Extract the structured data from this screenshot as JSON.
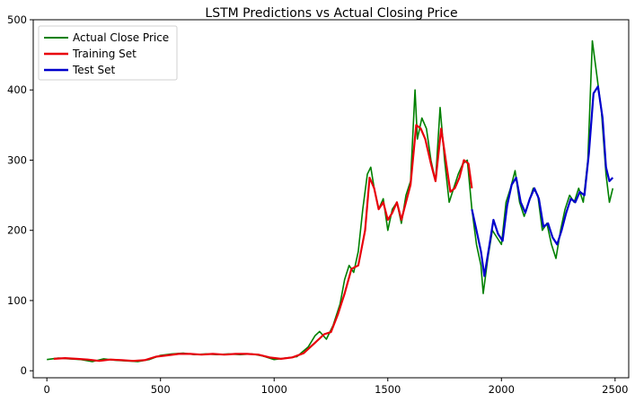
{
  "chart_data": {
    "type": "line",
    "title": "LSTM Predictions vs Actual Closing Price",
    "xlabel": "",
    "ylabel": "",
    "xlim": [
      -60,
      2560
    ],
    "ylim": [
      -10,
      500
    ],
    "x_ticks": [
      0,
      500,
      1000,
      1500,
      2000,
      2500
    ],
    "y_ticks": [
      0,
      100,
      200,
      300,
      400,
      500
    ],
    "grid": false,
    "legend_position": "top-left",
    "series": [
      {
        "name": "Actual Close Price",
        "color": "#008000",
        "points": [
          [
            0,
            16
          ],
          [
            50,
            18
          ],
          [
            100,
            17
          ],
          [
            150,
            16
          ],
          [
            200,
            13
          ],
          [
            250,
            17
          ],
          [
            300,
            15
          ],
          [
            350,
            14
          ],
          [
            400,
            13
          ],
          [
            450,
            16
          ],
          [
            500,
            22
          ],
          [
            550,
            24
          ],
          [
            600,
            25
          ],
          [
            650,
            23
          ],
          [
            700,
            24
          ],
          [
            750,
            23
          ],
          [
            800,
            24
          ],
          [
            850,
            23
          ],
          [
            900,
            24
          ],
          [
            950,
            21
          ],
          [
            1000,
            16
          ],
          [
            1050,
            18
          ],
          [
            1100,
            20
          ],
          [
            1150,
            34
          ],
          [
            1180,
            50
          ],
          [
            1200,
            56
          ],
          [
            1230,
            45
          ],
          [
            1260,
            65
          ],
          [
            1290,
            95
          ],
          [
            1310,
            130
          ],
          [
            1330,
            150
          ],
          [
            1350,
            140
          ],
          [
            1370,
            170
          ],
          [
            1390,
            230
          ],
          [
            1410,
            280
          ],
          [
            1425,
            290
          ],
          [
            1440,
            260
          ],
          [
            1460,
            230
          ],
          [
            1480,
            245
          ],
          [
            1500,
            200
          ],
          [
            1520,
            230
          ],
          [
            1540,
            240
          ],
          [
            1560,
            210
          ],
          [
            1580,
            250
          ],
          [
            1600,
            270
          ],
          [
            1620,
            400
          ],
          [
            1630,
            330
          ],
          [
            1650,
            360
          ],
          [
            1670,
            345
          ],
          [
            1690,
            300
          ],
          [
            1710,
            270
          ],
          [
            1730,
            375
          ],
          [
            1750,
            300
          ],
          [
            1770,
            240
          ],
          [
            1790,
            260
          ],
          [
            1810,
            280
          ],
          [
            1830,
            295
          ],
          [
            1850,
            300
          ],
          [
            1870,
            230
          ],
          [
            1890,
            180
          ],
          [
            1910,
            150
          ],
          [
            1920,
            110
          ],
          [
            1940,
            160
          ],
          [
            1960,
            200
          ],
          [
            1980,
            190
          ],
          [
            2000,
            180
          ],
          [
            2020,
            240
          ],
          [
            2040,
            260
          ],
          [
            2060,
            285
          ],
          [
            2080,
            240
          ],
          [
            2100,
            220
          ],
          [
            2120,
            240
          ],
          [
            2140,
            260
          ],
          [
            2160,
            250
          ],
          [
            2180,
            200
          ],
          [
            2200,
            210
          ],
          [
            2220,
            180
          ],
          [
            2240,
            160
          ],
          [
            2260,
            200
          ],
          [
            2280,
            230
          ],
          [
            2300,
            250
          ],
          [
            2320,
            240
          ],
          [
            2340,
            260
          ],
          [
            2360,
            240
          ],
          [
            2380,
            300
          ],
          [
            2400,
            470
          ],
          [
            2420,
            420
          ],
          [
            2440,
            370
          ],
          [
            2460,
            280
          ],
          [
            2475,
            240
          ],
          [
            2490,
            260
          ]
        ]
      },
      {
        "name": "Training Set",
        "color": "#e8000b",
        "points": [
          [
            30,
            17
          ],
          [
            80,
            18
          ],
          [
            130,
            17
          ],
          [
            180,
            16
          ],
          [
            230,
            14
          ],
          [
            280,
            16
          ],
          [
            330,
            15
          ],
          [
            380,
            14
          ],
          [
            430,
            15
          ],
          [
            480,
            20
          ],
          [
            530,
            22
          ],
          [
            580,
            24
          ],
          [
            630,
            24
          ],
          [
            680,
            23
          ],
          [
            730,
            24
          ],
          [
            780,
            23
          ],
          [
            830,
            24
          ],
          [
            880,
            24
          ],
          [
            930,
            23
          ],
          [
            980,
            19
          ],
          [
            1030,
            17
          ],
          [
            1080,
            19
          ],
          [
            1130,
            25
          ],
          [
            1180,
            40
          ],
          [
            1220,
            52
          ],
          [
            1250,
            55
          ],
          [
            1280,
            80
          ],
          [
            1310,
            110
          ],
          [
            1340,
            145
          ],
          [
            1370,
            150
          ],
          [
            1400,
            200
          ],
          [
            1420,
            275
          ],
          [
            1440,
            260
          ],
          [
            1460,
            230
          ],
          [
            1480,
            240
          ],
          [
            1500,
            215
          ],
          [
            1520,
            225
          ],
          [
            1540,
            240
          ],
          [
            1560,
            215
          ],
          [
            1580,
            240
          ],
          [
            1600,
            265
          ],
          [
            1625,
            350
          ],
          [
            1645,
            345
          ],
          [
            1665,
            330
          ],
          [
            1690,
            295
          ],
          [
            1710,
            270
          ],
          [
            1735,
            345
          ],
          [
            1755,
            300
          ],
          [
            1775,
            255
          ],
          [
            1795,
            260
          ],
          [
            1815,
            275
          ],
          [
            1835,
            300
          ],
          [
            1855,
            295
          ],
          [
            1870,
            260
          ]
        ]
      },
      {
        "name": "Test Set",
        "color": "#0000cc",
        "points": [
          [
            1870,
            230
          ],
          [
            1890,
            200
          ],
          [
            1910,
            170
          ],
          [
            1925,
            135
          ],
          [
            1945,
            175
          ],
          [
            1965,
            215
          ],
          [
            1985,
            195
          ],
          [
            2005,
            185
          ],
          [
            2025,
            235
          ],
          [
            2045,
            265
          ],
          [
            2065,
            275
          ],
          [
            2085,
            240
          ],
          [
            2105,
            225
          ],
          [
            2125,
            245
          ],
          [
            2145,
            260
          ],
          [
            2165,
            245
          ],
          [
            2185,
            205
          ],
          [
            2205,
            210
          ],
          [
            2225,
            190
          ],
          [
            2245,
            180
          ],
          [
            2265,
            200
          ],
          [
            2285,
            225
          ],
          [
            2305,
            245
          ],
          [
            2325,
            240
          ],
          [
            2345,
            255
          ],
          [
            2365,
            250
          ],
          [
            2385,
            310
          ],
          [
            2405,
            395
          ],
          [
            2425,
            405
          ],
          [
            2445,
            360
          ],
          [
            2460,
            290
          ],
          [
            2475,
            270
          ],
          [
            2490,
            275
          ]
        ]
      }
    ]
  }
}
